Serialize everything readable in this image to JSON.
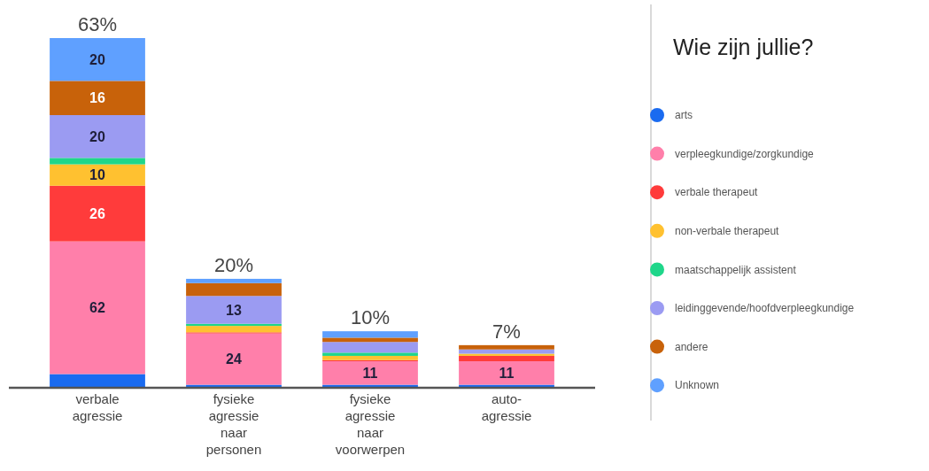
{
  "chart_data": {
    "type": "bar",
    "stacked": true,
    "categories": [
      "verbale agressie",
      "fysieke agressie naar personen",
      "fysieke agressie naar voorwerpen",
      "auto-agressie"
    ],
    "legend_title": "Wie zijn jullie?",
    "legend": "right",
    "annotations": [
      {
        "text": "63%",
        "x": "verbale agressie",
        "y": 163
      },
      {
        "text": "20%",
        "x": "fysieke agressie naar personen",
        "y": 50.5
      },
      {
        "text": "10%",
        "x": "fysieke agressie naar voorwerpen",
        "y": 26
      },
      {
        "text": "7%",
        "x": "auto-agressie",
        "y": 19.5
      }
    ],
    "series": [
      {
        "name": "arts",
        "color": "#1a6bf0",
        "values": [
          6,
          1,
          1,
          1
        ],
        "value_labels": [
          null,
          null,
          null,
          null
        ]
      },
      {
        "name": "verpleegkundige/zorgkundige",
        "color": "#ff7faa",
        "values": [
          62,
          24,
          11,
          11
        ],
        "value_labels": [
          "62",
          "24",
          "11",
          "11"
        ]
      },
      {
        "name": "verbale therapeut",
        "color": "#ff3b3b",
        "values": [
          26,
          0.5,
          0.5,
          2.5
        ],
        "value_labels": [
          "26",
          null,
          null,
          null
        ]
      },
      {
        "name": "non-verbale therapeut",
        "color": "#ffc130",
        "values": [
          10,
          3,
          2,
          1
        ],
        "value_labels": [
          "10",
          null,
          null,
          null
        ]
      },
      {
        "name": "maatschappelijk assistent",
        "color": "#1fd68a",
        "values": [
          3,
          1,
          1.5,
          0
        ],
        "value_labels": [
          null,
          null,
          null,
          null
        ]
      },
      {
        "name": "leidinggevende/hoofdverpleegkundige",
        "color": "#9b9bf2",
        "values": [
          20,
          13,
          5,
          2
        ],
        "value_labels": [
          "20",
          "13",
          null,
          null
        ]
      },
      {
        "name": "andere",
        "color": "#c8620a",
        "values": [
          16,
          6,
          2,
          2
        ],
        "value_labels": [
          "16",
          null,
          null,
          null
        ]
      },
      {
        "name": "Unknown",
        "color": "#5fa0ff",
        "values": [
          20,
          2,
          3,
          0
        ],
        "value_labels": [
          "20",
          null,
          null,
          null
        ]
      }
    ]
  }
}
